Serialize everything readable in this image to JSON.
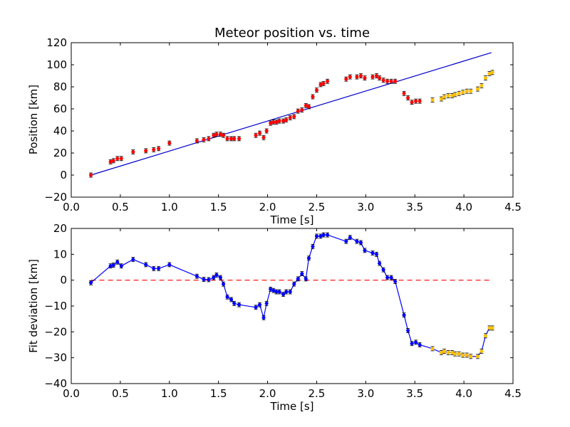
{
  "chart_data": [
    {
      "type": "scatter",
      "title": "Meteor position vs. time",
      "xlabel": "Time [s]",
      "ylabel": "Position [km]",
      "xlim": [
        0.0,
        4.5
      ],
      "ylim": [
        -20,
        120
      ],
      "xticks": [
        "0.0",
        "0.5",
        "1.0",
        "1.5",
        "2.0",
        "2.5",
        "3.0",
        "3.5",
        "4.0",
        "4.5"
      ],
      "yticks": [
        "−20",
        "0",
        "20",
        "40",
        "60",
        "80",
        "100",
        "120"
      ],
      "colors": {
        "observed": "#ff0000",
        "excluded": "#ffbf00",
        "fit": "#0000cc"
      },
      "series": [
        {
          "role": "observed",
          "points": [
            [
              0.2,
              0
            ],
            [
              0.4,
              12
            ],
            [
              0.43,
              13
            ],
            [
              0.47,
              15
            ],
            [
              0.51,
              15
            ],
            [
              0.63,
              21
            ],
            [
              0.76,
              22
            ],
            [
              0.84,
              23
            ],
            [
              0.89,
              24
            ],
            [
              1.0,
              29
            ],
            [
              1.28,
              31
            ],
            [
              1.35,
              32
            ],
            [
              1.4,
              33
            ],
            [
              1.45,
              36
            ],
            [
              1.48,
              37
            ],
            [
              1.52,
              37
            ],
            [
              1.55,
              36
            ],
            [
              1.59,
              33
            ],
            [
              1.63,
              33
            ],
            [
              1.66,
              33
            ],
            [
              1.71,
              33
            ],
            [
              1.88,
              36
            ],
            [
              1.92,
              38
            ],
            [
              1.96,
              34
            ],
            [
              1.99,
              40
            ],
            [
              2.03,
              47
            ],
            [
              2.06,
              48
            ],
            [
              2.09,
              48
            ],
            [
              2.12,
              49
            ],
            [
              2.16,
              49
            ],
            [
              2.19,
              50
            ],
            [
              2.23,
              52
            ],
            [
              2.27,
              53
            ],
            [
              2.31,
              58
            ],
            [
              2.35,
              59
            ],
            [
              2.39,
              63
            ],
            [
              2.42,
              62
            ],
            [
              2.46,
              71
            ],
            [
              2.5,
              77
            ],
            [
              2.54,
              82
            ],
            [
              2.57,
              83
            ],
            [
              2.61,
              85
            ],
            [
              2.8,
              87
            ],
            [
              2.84,
              89
            ],
            [
              2.91,
              89
            ],
            [
              2.95,
              90
            ],
            [
              2.99,
              88
            ],
            [
              3.07,
              89
            ],
            [
              3.11,
              90
            ],
            [
              3.14,
              88
            ],
            [
              3.18,
              86
            ],
            [
              3.22,
              85
            ],
            [
              3.26,
              85
            ],
            [
              3.3,
              85
            ],
            [
              3.39,
              74
            ],
            [
              3.43,
              70
            ],
            [
              3.47,
              66
            ],
            [
              3.51,
              67
            ],
            [
              3.55,
              67
            ]
          ]
        },
        {
          "role": "excluded",
          "points": [
            [
              3.68,
              68
            ],
            [
              3.77,
              69
            ],
            [
              3.8,
              71
            ],
            [
              3.84,
              72
            ],
            [
              3.88,
              72
            ],
            [
              3.91,
              73
            ],
            [
              3.95,
              74
            ],
            [
              3.99,
              75
            ],
            [
              4.03,
              76
            ],
            [
              4.07,
              76
            ],
            [
              4.14,
              78
            ],
            [
              4.18,
              81
            ],
            [
              4.22,
              88
            ],
            [
              4.26,
              92
            ],
            [
              4.29,
              93
            ]
          ]
        },
        {
          "role": "fit",
          "line": [
            [
              0.2,
              0
            ],
            [
              4.28,
              111
            ]
          ]
        }
      ]
    },
    {
      "type": "line",
      "xlabel": "Time [s]",
      "ylabel": "Fit deviation [km]",
      "xlim": [
        0.0,
        4.5
      ],
      "ylim": [
        -40,
        20
      ],
      "xticks": [
        "0.0",
        "0.5",
        "1.0",
        "1.5",
        "2.0",
        "2.5",
        "3.0",
        "3.5",
        "4.0",
        "4.5"
      ],
      "yticks": [
        "−40",
        "−30",
        "−20",
        "−10",
        "0",
        "10",
        "20"
      ],
      "colors": {
        "deviation": "#0000ff",
        "excluded": "#ffbf00",
        "zero": "#ff0000"
      },
      "zero_line": [
        0.2,
        4.28
      ],
      "series": [
        {
          "role": "deviation",
          "points": [
            [
              0.2,
              -1
            ],
            [
              0.4,
              5.5
            ],
            [
              0.43,
              5.8
            ],
            [
              0.47,
              7
            ],
            [
              0.51,
              5.5
            ],
            [
              0.63,
              8
            ],
            [
              0.76,
              6
            ],
            [
              0.84,
              4.5
            ],
            [
              0.89,
              4.5
            ],
            [
              1.0,
              6
            ],
            [
              1.28,
              1.5
            ],
            [
              1.35,
              0.3
            ],
            [
              1.4,
              0.2
            ],
            [
              1.45,
              1
            ],
            [
              1.48,
              2
            ],
            [
              1.52,
              1
            ],
            [
              1.55,
              -1.5
            ],
            [
              1.59,
              -6.5
            ],
            [
              1.63,
              -7.5
            ],
            [
              1.66,
              -9
            ],
            [
              1.71,
              -9.5
            ],
            [
              1.88,
              -10.5
            ],
            [
              1.92,
              -9.5
            ],
            [
              1.96,
              -14.5
            ],
            [
              1.99,
              -9
            ],
            [
              2.03,
              -3.5
            ],
            [
              2.06,
              -4
            ],
            [
              2.09,
              -4.5
            ],
            [
              2.12,
              -4.5
            ],
            [
              2.16,
              -5.5
            ],
            [
              2.19,
              -4.5
            ],
            [
              2.23,
              -4.5
            ],
            [
              2.27,
              -1.5
            ],
            [
              2.31,
              0.5
            ],
            [
              2.35,
              2.5
            ],
            [
              2.39,
              0.5
            ],
            [
              2.42,
              8.5
            ],
            [
              2.46,
              13
            ],
            [
              2.5,
              17
            ],
            [
              2.54,
              17
            ],
            [
              2.57,
              17.5
            ],
            [
              2.61,
              17.5
            ],
            [
              2.8,
              15
            ],
            [
              2.84,
              16.5
            ],
            [
              2.91,
              15
            ],
            [
              2.95,
              14.5
            ],
            [
              2.99,
              11.5
            ],
            [
              3.07,
              10.5
            ],
            [
              3.11,
              10
            ],
            [
              3.14,
              6.5
            ],
            [
              3.18,
              4
            ],
            [
              3.22,
              1
            ],
            [
              3.26,
              1
            ],
            [
              3.3,
              -0.5
            ],
            [
              3.39,
              -13.5
            ],
            [
              3.43,
              -19.5
            ],
            [
              3.47,
              -24.5
            ],
            [
              3.51,
              -24
            ],
            [
              3.55,
              -25
            ]
          ]
        },
        {
          "role": "excluded",
          "points": [
            [
              3.68,
              -26.5
            ],
            [
              3.77,
              -28
            ],
            [
              3.8,
              -27.5
            ],
            [
              3.84,
              -28
            ],
            [
              3.88,
              -28
            ],
            [
              3.91,
              -28.5
            ],
            [
              3.95,
              -28.5
            ],
            [
              3.99,
              -29
            ],
            [
              4.03,
              -29
            ],
            [
              4.07,
              -29.5
            ],
            [
              4.14,
              -29.5
            ],
            [
              4.18,
              -27.5
            ],
            [
              4.22,
              -21.5
            ],
            [
              4.26,
              -18.5
            ],
            [
              4.29,
              -18.5
            ]
          ]
        }
      ]
    }
  ]
}
